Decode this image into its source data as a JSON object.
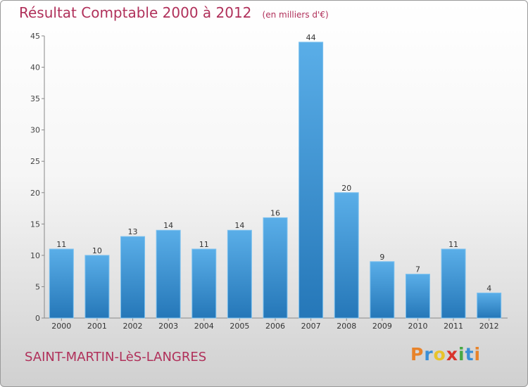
{
  "header": {
    "title": "Résultat Comptable 2000 à 2012",
    "subtitle": "(en milliers d'€)"
  },
  "footer": {
    "town": "SAINT-MARTIN-LèS-LANGRES",
    "logo": [
      "P",
      "r",
      "o",
      "x",
      "i",
      "t",
      "i"
    ],
    "logo_colors": [
      "#e8832a",
      "#3a8fd6",
      "#e8c32a",
      "#d9342b",
      "#47a845",
      "#3a8fd6",
      "#e8832a"
    ]
  },
  "colors": {
    "bar_light": "#5aaee8",
    "bar_dark": "#2577b8",
    "title": "#b0305a"
  },
  "chart_data": {
    "type": "bar",
    "categories": [
      "2000",
      "2001",
      "2002",
      "2003",
      "2004",
      "2005",
      "2006",
      "2007",
      "2008",
      "2009",
      "2010",
      "2011",
      "2012"
    ],
    "values": [
      11,
      10,
      13,
      14,
      11,
      14,
      16,
      44,
      20,
      9,
      7,
      11,
      4
    ],
    "ylim": [
      0,
      45
    ],
    "yticks": [
      0,
      5,
      10,
      15,
      20,
      25,
      30,
      35,
      40,
      45
    ],
    "grid": false,
    "title": "Résultat Comptable 2000 à 2012",
    "xlabel": "",
    "ylabel": ""
  }
}
